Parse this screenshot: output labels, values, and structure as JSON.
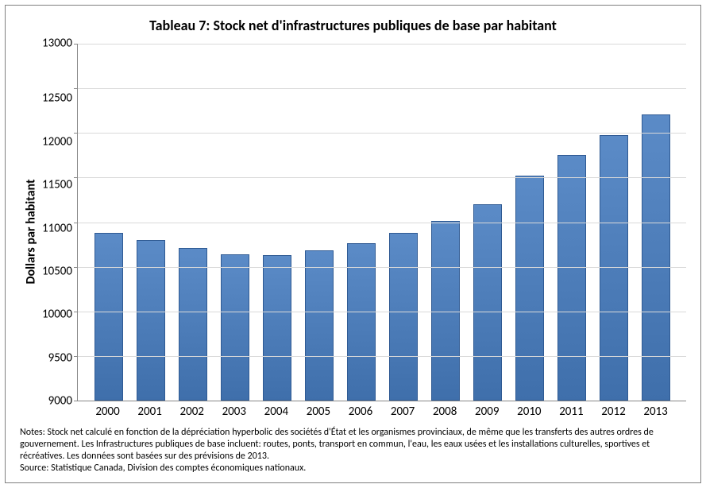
{
  "chart": {
    "type": "bar",
    "title": "Tableau 7: Stock net d'infrastructures publiques de base par habitant",
    "title_fontsize": 18,
    "ylabel": "Dollars par habitant",
    "ylabel_fontsize": 16,
    "categories": [
      "2000",
      "2001",
      "2002",
      "2003",
      "2004",
      "2005",
      "2006",
      "2007",
      "2008",
      "2009",
      "2010",
      "2011",
      "2012",
      "2013"
    ],
    "values": [
      10880,
      10800,
      10710,
      10640,
      10630,
      10680,
      10760,
      10880,
      11010,
      11200,
      11520,
      11750,
      11980,
      12210
    ],
    "ylim": [
      9000,
      13000
    ],
    "ytick_step": 500,
    "yticks": [
      13000,
      12500,
      12000,
      11500,
      11000,
      10500,
      10000,
      9500,
      9000
    ],
    "tick_fontsize": 15,
    "bar_fill_top": "#5b8bc7",
    "bar_fill_bottom": "#3f6fab",
    "bar_border": "#2f5a93",
    "bar_width": 0.68,
    "grid_color": "#d9d9d9",
    "axis_color": "#888888",
    "background_color": "#ffffff"
  },
  "notes": {
    "line1": "Notes: Stock net calculé en fonction de la dépréciation hyperbolic des sociétés d'État et les organismes provinciaux, de même que les transferts des autres ordres de gouvernement. Les Infrastructures publiques de base incluent: routes, ponts, transport en commun, l'eau, les eaux usées et les installations culturelles, sportives et récréatives. Les données sont basées sur des prévisions de 2013.",
    "line2": "Source: Statistique Canada, Division des comptes économiques nationaux.",
    "fontsize": 12
  }
}
